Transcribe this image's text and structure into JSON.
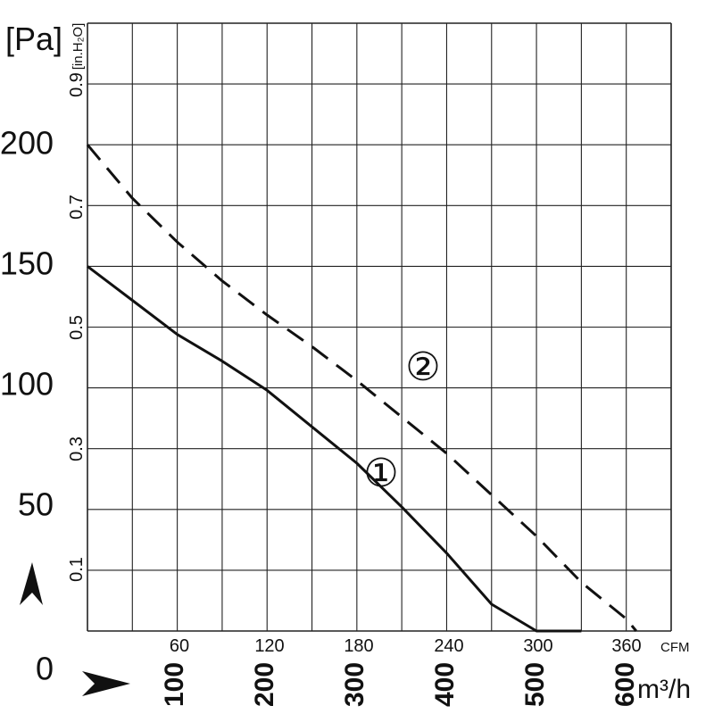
{
  "chart_data": {
    "type": "line",
    "title": "",
    "xlabel": "m³/h",
    "ylabel": "[Pa]",
    "xlim": [
      0,
      650
    ],
    "ylim": [
      0,
      250
    ],
    "grid": true,
    "left_axis": {
      "unit": "[Pa]",
      "ticks": [
        "0",
        "50",
        "100",
        "150",
        "200"
      ]
    },
    "right_axis_inh2o": {
      "unit": "[in.H₂O]",
      "ticks": [
        "0.1",
        "0.3",
        "0.5",
        "0.7",
        "0.9"
      ]
    },
    "top_axis_cfm": {
      "unit": "CFM",
      "ticks": [
        "60",
        "120",
        "180",
        "240",
        "300",
        "360"
      ]
    },
    "bottom_axis_m3h": {
      "unit": "m³/h",
      "ticks": [
        "100",
        "200",
        "300",
        "400",
        "500",
        "600"
      ]
    },
    "series": [
      {
        "name": "①",
        "style": "solid",
        "x": [
          0,
          50,
          100,
          150,
          200,
          250,
          300,
          350,
          400,
          450,
          500,
          550
        ],
        "y": [
          150,
          136,
          122,
          111,
          99,
          84,
          69,
          51,
          32,
          11,
          0,
          0
        ]
      },
      {
        "name": "②",
        "style": "dashed",
        "x": [
          0,
          50,
          100,
          150,
          200,
          250,
          300,
          350,
          400,
          450,
          500,
          550,
          600,
          611
        ],
        "y": [
          200,
          178,
          160,
          144,
          130,
          117,
          103,
          88,
          73,
          56,
          39,
          20,
          5,
          0
        ]
      }
    ]
  }
}
